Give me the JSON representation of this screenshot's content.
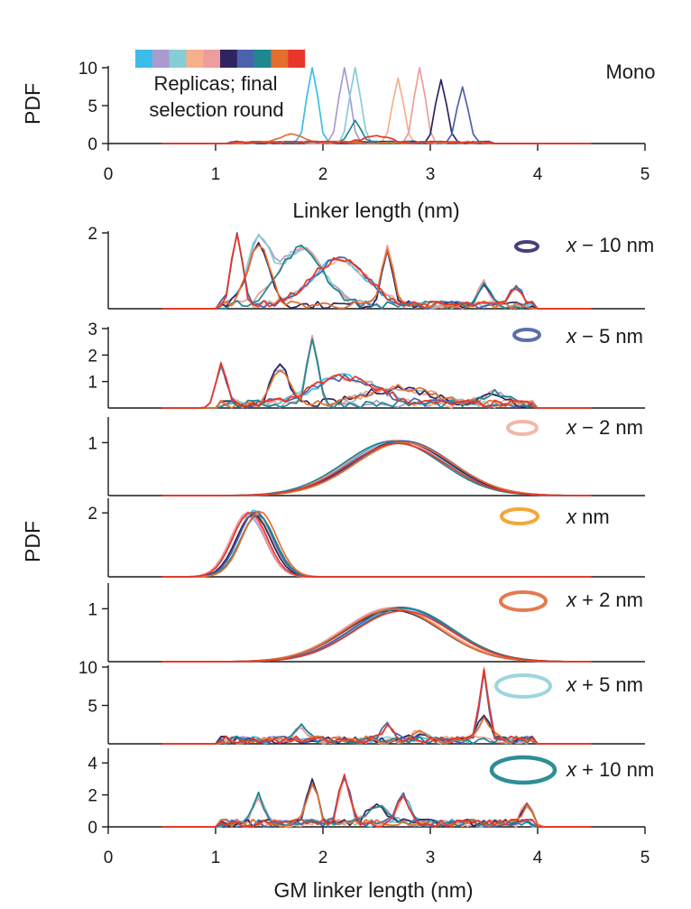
{
  "palette": [
    "#3bbde8",
    "#a99bd0",
    "#86cdd6",
    "#f6b08c",
    "#ef9c9c",
    "#2e2560",
    "#4b63ad",
    "#1e8791",
    "#e46f2c",
    "#e8362b"
  ],
  "chart_data": {
    "type": "line",
    "xlabel_top": "Linker length (nm)",
    "xlabel_bottom": "GM linker length (nm)",
    "ylabel": "PDF",
    "xlim": [
      0,
      5
    ],
    "xticks": [
      "0",
      "1",
      "2",
      "3",
      "4",
      "5"
    ],
    "legend": {
      "swatch_colors": [
        "#3bbde8",
        "#a99bd0",
        "#86cdd6",
        "#f6b08c",
        "#ef9c9c",
        "#2e2560",
        "#4b63ad",
        "#1e8791",
        "#e46f2c",
        "#e8362b"
      ],
      "line1": "Replicas; final",
      "line2": "selection round"
    },
    "panels": [
      {
        "id": "mono",
        "label": "Mono",
        "ylim": [
          0,
          10
        ],
        "yticks": [
          "0",
          "5",
          "10"
        ],
        "ring_color": null,
        "ring_rx": 0,
        "ring_ry": 0,
        "ring_w": 0,
        "peaks": [
          {
            "x": 1.9,
            "h": 10,
            "w": 0.05
          },
          {
            "x": 2.2,
            "h": 10,
            "w": 0.05
          },
          {
            "x": 2.3,
            "h": 10,
            "w": 0.05
          },
          {
            "x": 2.7,
            "h": 8.5,
            "w": 0.05
          },
          {
            "x": 2.9,
            "h": 10,
            "w": 0.05
          },
          {
            "x": 3.1,
            "h": 8.2,
            "w": 0.05
          },
          {
            "x": 3.3,
            "h": 7.3,
            "w": 0.05
          },
          {
            "x": 2.3,
            "h": 2.8,
            "w": 0.05
          },
          {
            "x": 1.7,
            "h": 1.0,
            "w": 0.1
          },
          {
            "x": 2.5,
            "h": 0.8,
            "w": 0.12
          }
        ]
      },
      {
        "id": "m10",
        "label_x": "x",
        "label_rest": " − 10 nm",
        "ylim": [
          0,
          2
        ],
        "yticks": [
          "2"
        ],
        "ring_color": "#4a3f7a",
        "ring_rx": 12,
        "ring_ry": 5,
        "ring_w": 4,
        "peaks": [
          {
            "x": 1.2,
            "h": 1.85,
            "w": 0.05
          },
          {
            "x": 1.4,
            "h": 1.6,
            "w": 0.1
          },
          {
            "x": 1.8,
            "h": 1.5,
            "w": 0.2
          },
          {
            "x": 2.15,
            "h": 1.2,
            "w": 0.25
          },
          {
            "x": 2.6,
            "h": 1.5,
            "w": 0.05
          },
          {
            "x": 3.5,
            "h": 0.6,
            "w": 0.05
          },
          {
            "x": 3.8,
            "h": 0.5,
            "w": 0.05
          }
        ]
      },
      {
        "id": "m5",
        "label_x": "x",
        "label_rest": " − 5 nm",
        "ylim": [
          0,
          3
        ],
        "yticks": [
          "1",
          "2",
          "3"
        ],
        "ring_color": "#5b70aa",
        "ring_rx": 14,
        "ring_ry": 6,
        "ring_w": 4,
        "peaks": [
          {
            "x": 1.05,
            "h": 1.5,
            "w": 0.05
          },
          {
            "x": 1.6,
            "h": 1.4,
            "w": 0.08
          },
          {
            "x": 1.9,
            "h": 2.5,
            "w": 0.05
          },
          {
            "x": 2.2,
            "h": 1.0,
            "w": 0.3
          },
          {
            "x": 2.7,
            "h": 0.6,
            "w": 0.3
          },
          {
            "x": 3.6,
            "h": 0.4,
            "w": 0.1
          }
        ]
      },
      {
        "id": "m2",
        "label_x": "x",
        "label_rest": " − 2 nm",
        "ylim": [
          0,
          1.45
        ],
        "yticks": [
          "1"
        ],
        "ring_color": "#f2b8a8",
        "ring_rx": 16,
        "ring_ry": 7,
        "ring_w": 4,
        "peaks": [
          {
            "x": 2.7,
            "h": 1.05,
            "w": 0.45
          }
        ]
      },
      {
        "id": "x",
        "label_x": "x",
        "label_rest": " nm",
        "ylim": [
          0,
          2.4
        ],
        "yticks": [
          "2"
        ],
        "ring_color": "#f2a73c",
        "ring_rx": 20,
        "ring_ry": 8,
        "ring_w": 4,
        "peaks": [
          {
            "x": 1.35,
            "h": 2.05,
            "w": 0.16
          }
        ]
      },
      {
        "id": "p2",
        "label_x": "x",
        "label_rest": " + 2 nm",
        "ylim": [
          0,
          1.45
        ],
        "yticks": [
          "1"
        ],
        "ring_color": "#e57a4e",
        "ring_rx": 25,
        "ring_ry": 10,
        "ring_w": 4,
        "peaks": [
          {
            "x": 2.7,
            "h": 1.0,
            "w": 0.45
          }
        ]
      },
      {
        "id": "p5",
        "label_x": "x",
        "label_rest": " + 5 nm",
        "ylim": [
          0,
          10
        ],
        "yticks": [
          "5",
          "10"
        ],
        "ring_color": "#9dd5e0",
        "ring_rx": 30,
        "ring_ry": 12,
        "ring_w": 4,
        "peaks": [
          {
            "x": 3.5,
            "h": 9.2,
            "w": 0.04
          },
          {
            "x": 3.5,
            "h": 2.8,
            "w": 0.06
          },
          {
            "x": 1.8,
            "h": 2.0,
            "w": 0.05
          },
          {
            "x": 2.6,
            "h": 1.8,
            "w": 0.05
          },
          {
            "x": 2.9,
            "h": 1.2,
            "w": 0.05
          }
        ]
      },
      {
        "id": "p10",
        "label_x": "x",
        "label_rest": " + 10 nm",
        "ylim": [
          0,
          4.8
        ],
        "yticks": [
          "0",
          "2",
          "4"
        ],
        "ring_color": "#2e8e97",
        "ring_rx": 35,
        "ring_ry": 14,
        "ring_w": 4.5,
        "peaks": [
          {
            "x": 2.2,
            "h": 3.0,
            "w": 0.05
          },
          {
            "x": 1.9,
            "h": 2.6,
            "w": 0.05
          },
          {
            "x": 1.4,
            "h": 1.7,
            "w": 0.05
          },
          {
            "x": 2.75,
            "h": 1.9,
            "w": 0.05
          },
          {
            "x": 3.9,
            "h": 1.1,
            "w": 0.05
          },
          {
            "x": 2.5,
            "h": 1.0,
            "w": 0.1
          }
        ]
      }
    ]
  }
}
